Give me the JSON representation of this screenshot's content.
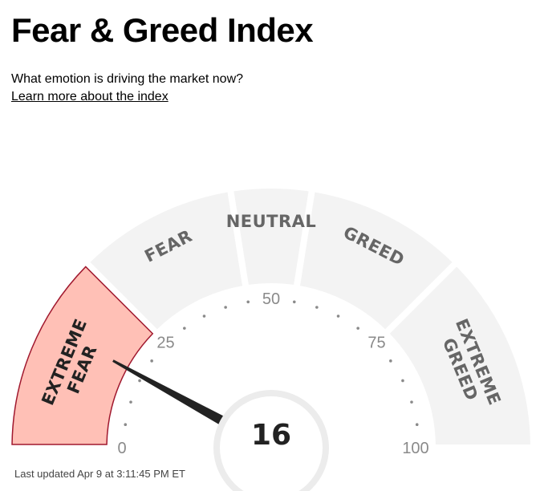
{
  "header": {
    "title": "Fear & Greed Index",
    "subtitle": "What emotion is driving the market now?",
    "link_label": "Learn more about the index"
  },
  "chart_data": {
    "type": "gauge",
    "min": 0,
    "max": 100,
    "value": 16,
    "value_label": "16",
    "zones": [
      {
        "label": "EXTREME FEAR",
        "lines": [
          "EXTREME",
          "FEAR"
        ],
        "from": 0,
        "to": 25,
        "active": true
      },
      {
        "label": "FEAR",
        "lines": [
          "FEAR"
        ],
        "from": 25,
        "to": 45,
        "active": false
      },
      {
        "label": "NEUTRAL",
        "lines": [
          "NEUTRAL"
        ],
        "from": 45,
        "to": 55,
        "active": false
      },
      {
        "label": "GREED",
        "lines": [
          "GREED"
        ],
        "from": 55,
        "to": 75,
        "active": false
      },
      {
        "label": "EXTREME GREED",
        "lines": [
          "EXTREME",
          "GREED"
        ],
        "from": 75,
        "to": 100,
        "active": false
      }
    ],
    "tick_labels": [
      {
        "value": 0,
        "label": "0"
      },
      {
        "value": 25,
        "label": "25"
      },
      {
        "value": 50,
        "label": "50"
      },
      {
        "value": 75,
        "label": "75"
      },
      {
        "value": 100,
        "label": "100"
      }
    ],
    "colors": {
      "active_fill": "#ffc0b6",
      "active_stroke": "#a0182e",
      "inactive_fill": "#f3f3f3",
      "needle": "#222222"
    }
  },
  "footer": {
    "last_updated": "Last updated Apr 9 at 3:11:45 PM ET"
  }
}
